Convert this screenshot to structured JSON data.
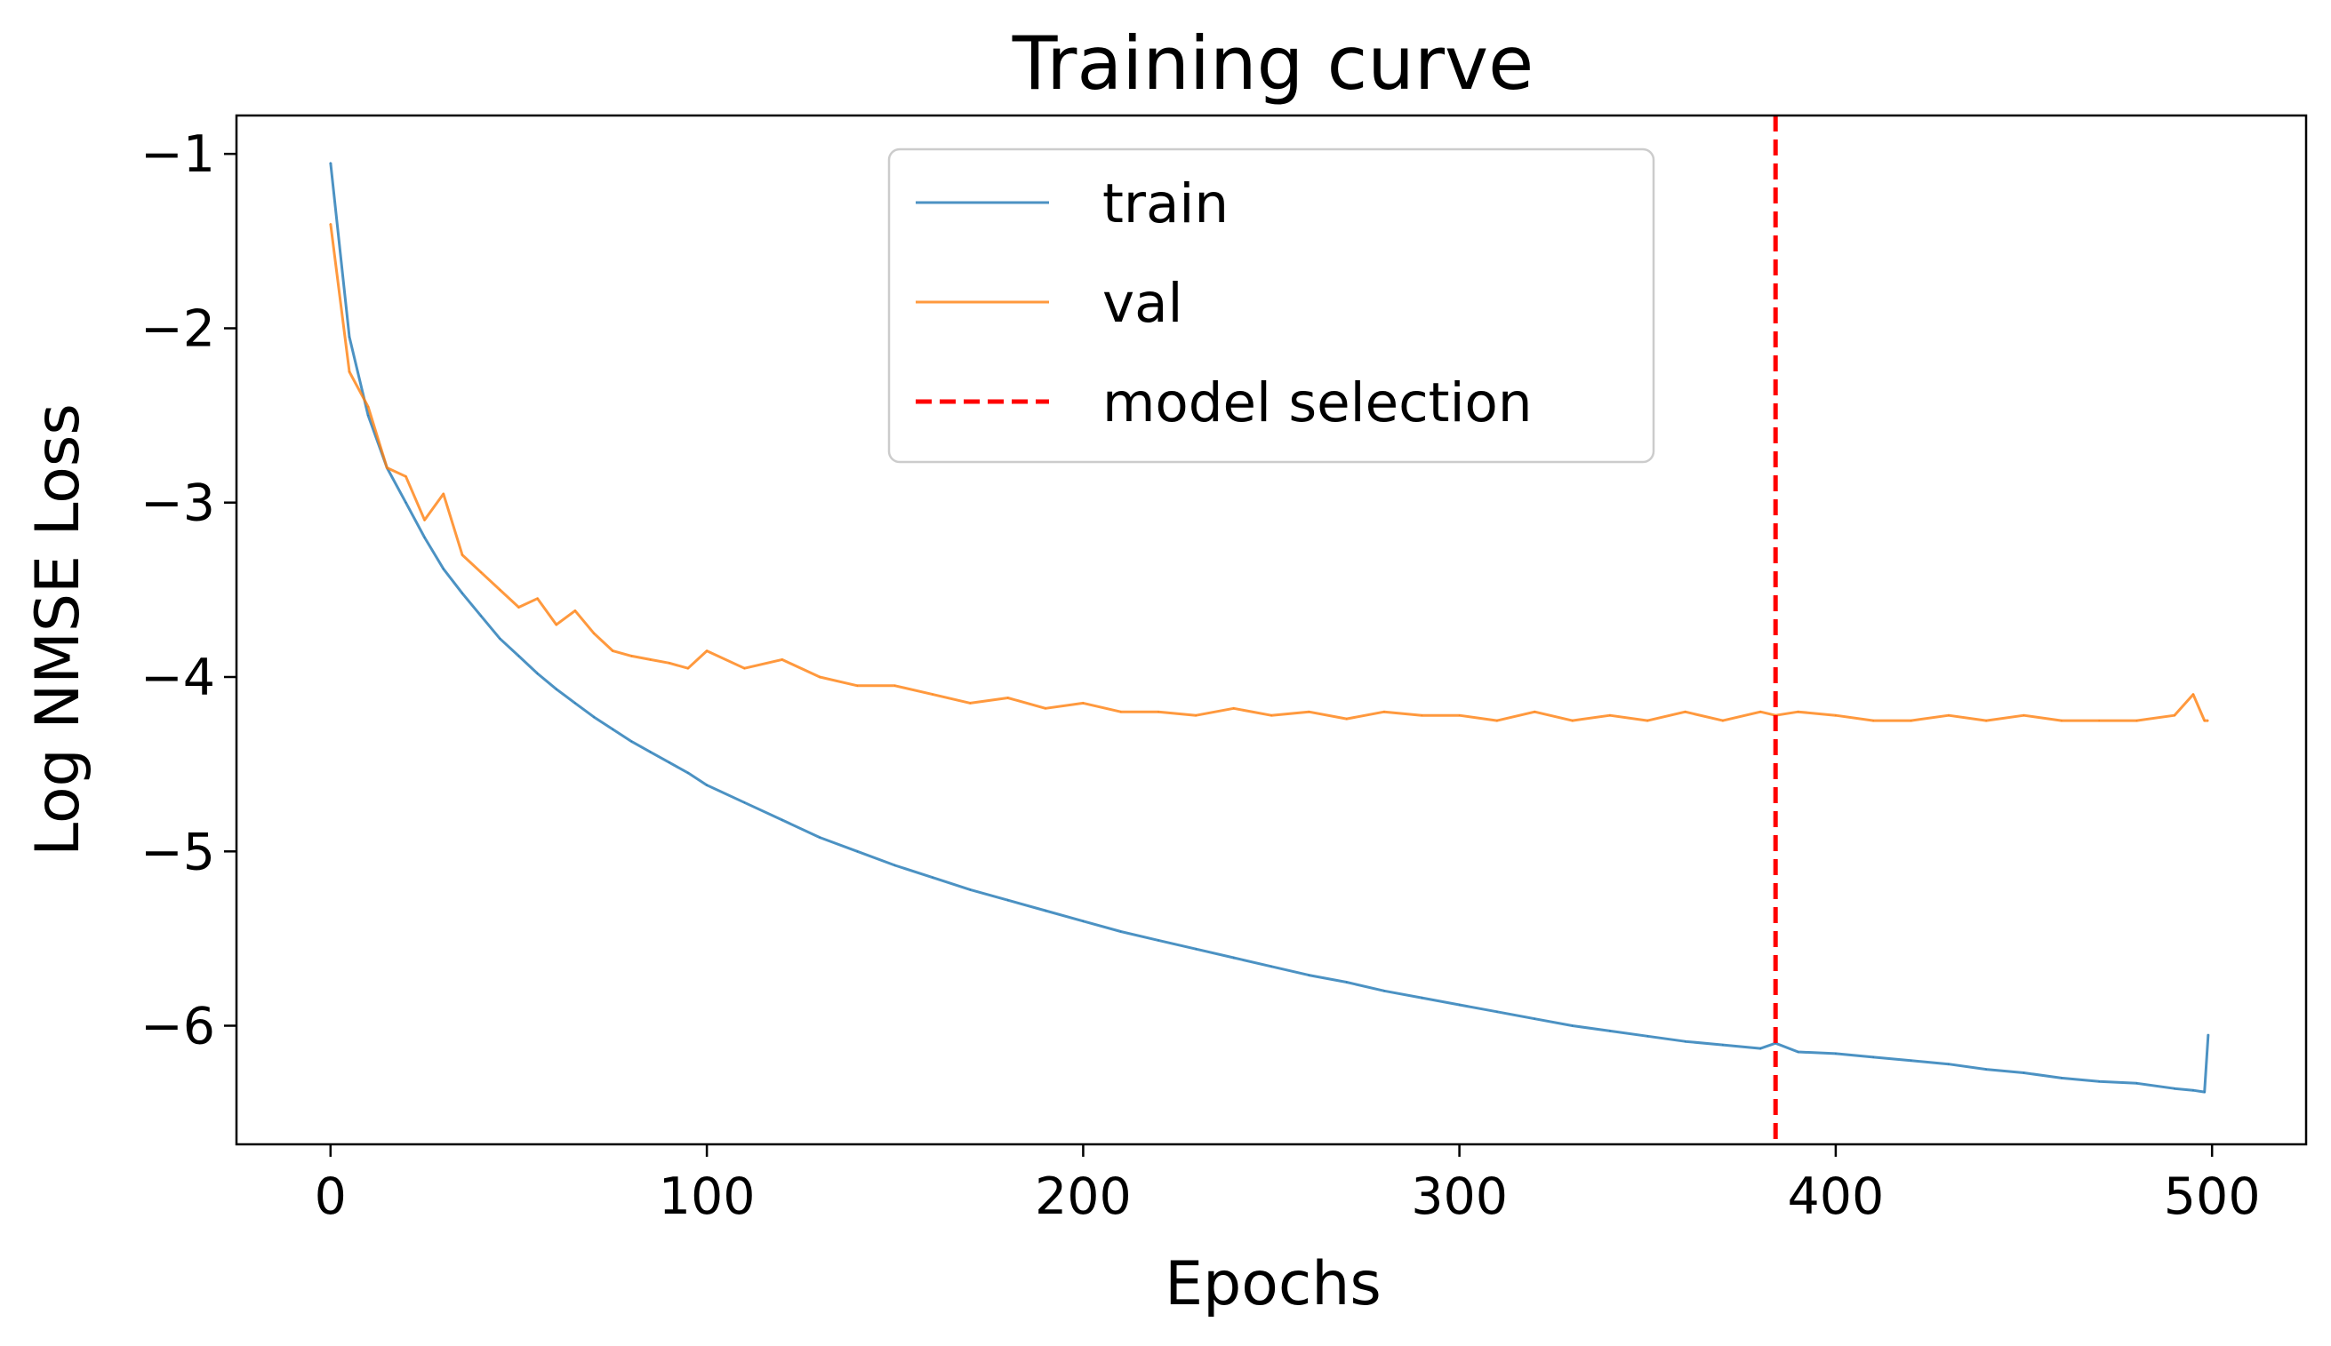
{
  "chart_data": {
    "type": "line",
    "title": "Training curve",
    "xlabel": "Epochs",
    "ylabel": "Log NMSE Loss",
    "xlim": [
      -25,
      525
    ],
    "ylim": [
      -6.68,
      -0.78
    ],
    "x_ticks": [
      0,
      100,
      200,
      300,
      400,
      500
    ],
    "y_ticks": [
      -1,
      -2,
      -3,
      -4,
      -5,
      -6
    ],
    "x_tick_labels": [
      "0",
      "100",
      "200",
      "300",
      "400",
      "500"
    ],
    "y_tick_labels": [
      "−1",
      "−2",
      "−3",
      "−4",
      "−5",
      "−6"
    ],
    "grid": false,
    "legend_position": "upper-center",
    "model_selection_epoch": 384,
    "x": [
      0,
      5,
      10,
      15,
      20,
      25,
      30,
      35,
      40,
      45,
      50,
      55,
      60,
      65,
      70,
      75,
      80,
      85,
      90,
      95,
      100,
      110,
      120,
      130,
      140,
      150,
      160,
      170,
      180,
      190,
      200,
      210,
      220,
      230,
      240,
      250,
      260,
      270,
      280,
      290,
      300,
      310,
      320,
      330,
      340,
      350,
      360,
      370,
      380,
      384,
      390,
      400,
      410,
      420,
      430,
      440,
      450,
      460,
      470,
      480,
      490,
      495,
      498,
      499
    ],
    "series": [
      {
        "name": "train",
        "color": "#1f77b4",
        "values": [
          -1.05,
          -2.05,
          -2.5,
          -2.8,
          -3.0,
          -3.2,
          -3.38,
          -3.52,
          -3.65,
          -3.78,
          -3.88,
          -3.98,
          -4.07,
          -4.15,
          -4.23,
          -4.3,
          -4.37,
          -4.43,
          -4.49,
          -4.55,
          -4.62,
          -4.72,
          -4.82,
          -4.92,
          -5.0,
          -5.08,
          -5.15,
          -5.22,
          -5.28,
          -5.34,
          -5.4,
          -5.46,
          -5.51,
          -5.56,
          -5.61,
          -5.66,
          -5.71,
          -5.75,
          -5.8,
          -5.84,
          -5.88,
          -5.92,
          -5.96,
          -6.0,
          -6.03,
          -6.06,
          -6.09,
          -6.11,
          -6.13,
          -6.1,
          -6.15,
          -6.16,
          -6.18,
          -6.2,
          -6.22,
          -6.25,
          -6.27,
          -6.3,
          -6.32,
          -6.33,
          -6.36,
          -6.37,
          -6.38,
          -6.05
        ]
      },
      {
        "name": "val",
        "color": "#ff7f0e",
        "values": [
          -1.4,
          -2.25,
          -2.45,
          -2.8,
          -2.85,
          -3.1,
          -2.95,
          -3.3,
          -3.4,
          -3.5,
          -3.6,
          -3.55,
          -3.7,
          -3.62,
          -3.75,
          -3.85,
          -3.88,
          -3.9,
          -3.92,
          -3.95,
          -3.85,
          -3.95,
          -3.9,
          -4.0,
          -4.05,
          -4.05,
          -4.1,
          -4.15,
          -4.12,
          -4.18,
          -4.15,
          -4.2,
          -4.2,
          -4.22,
          -4.18,
          -4.22,
          -4.2,
          -4.24,
          -4.2,
          -4.22,
          -4.22,
          -4.25,
          -4.2,
          -4.25,
          -4.22,
          -4.25,
          -4.2,
          -4.25,
          -4.2,
          -4.22,
          -4.2,
          -4.22,
          -4.25,
          -4.25,
          -4.22,
          -4.25,
          -4.22,
          -4.25,
          -4.25,
          -4.25,
          -4.22,
          -4.1,
          -4.25,
          -4.25
        ]
      },
      {
        "name": "model selection",
        "color": "#ff0000"
      }
    ]
  }
}
